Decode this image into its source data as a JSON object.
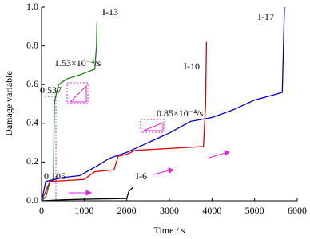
{
  "chart_data": {
    "type": "line",
    "x_label": "Time / s",
    "y_label": "Damage variable",
    "xlim": [
      0,
      6000
    ],
    "xticks": [
      0,
      1000,
      2000,
      3000,
      4000,
      5000,
      6000
    ],
    "ylim": [
      0,
      1
    ],
    "yticks": [
      {
        "value": 0,
        "label": "0.0"
      },
      0.2,
      0.4,
      0.6,
      0.8,
      {
        "value": 1,
        "label": "1.0"
      }
    ],
    "series": [
      {
        "name": "I-13",
        "color": "#1a7d1a",
        "x": [
          0,
          100,
          200,
          280,
          300,
          330,
          400,
          600,
          900,
          1250,
          1290,
          1300
        ],
        "values": [
          0,
          0.02,
          0.1,
          0.105,
          0.5,
          0.537,
          0.6,
          0.63,
          0.65,
          0.68,
          0.8,
          0.92
        ]
      },
      {
        "name": "I-10",
        "color": "#e00000",
        "x": [
          0,
          100,
          200,
          1000,
          1250,
          1700,
          1800,
          2000,
          2200,
          3000,
          3800,
          3850,
          3870
        ],
        "values": [
          0,
          0.05,
          0.1,
          0.11,
          0.15,
          0.16,
          0.23,
          0.24,
          0.26,
          0.27,
          0.28,
          0.5,
          0.82
        ]
      },
      {
        "name": "I-17",
        "color": "#0000c0",
        "x": [
          0,
          100,
          500,
          900,
          1300,
          1600,
          2000,
          2400,
          2700,
          3000,
          3500,
          4000,
          4500,
          5000,
          5500,
          5650,
          5700
        ],
        "values": [
          0,
          0.1,
          0.12,
          0.13,
          0.18,
          0.22,
          0.25,
          0.29,
          0.32,
          0.35,
          0.41,
          0.43,
          0.47,
          0.52,
          0.55,
          0.56,
          1.0
        ]
      },
      {
        "name": "I-6",
        "color": "#000000",
        "x": [
          0,
          500,
          1000,
          1500,
          2000,
          2050,
          2100,
          2150
        ],
        "values": [
          0,
          0.005,
          0.008,
          0.01,
          0.012,
          0.05,
          0.06,
          0.07
        ]
      }
    ],
    "annotations": [
      "1.53×10⁻⁴/s",
      "0.85×10⁻⁴/s",
      "0.537",
      "0.105"
    ]
  }
}
